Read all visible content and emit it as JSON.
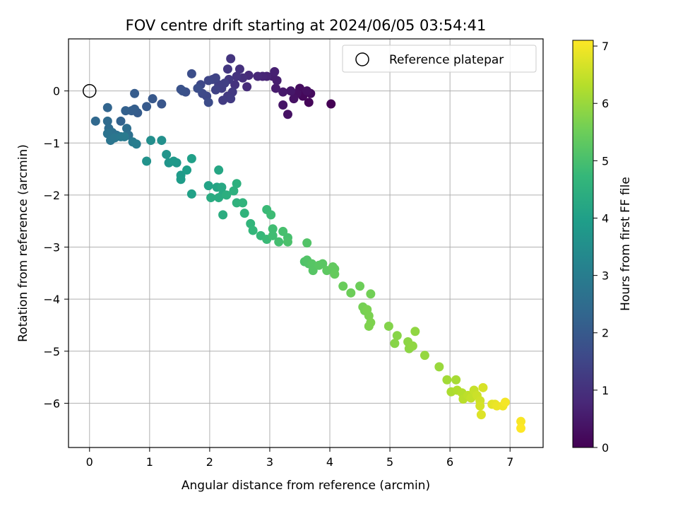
{
  "chart_data": {
    "type": "scatter",
    "title": "FOV centre drift starting at 2024/06/05 03:54:41",
    "xlabel": "Angular distance from reference (arcmin)",
    "ylabel": "Rotation from reference (arcmin)",
    "xlim": [
      -0.35,
      7.55
    ],
    "ylim": [
      -6.85,
      1.0
    ],
    "xticks": [
      0,
      1,
      2,
      3,
      4,
      5,
      6,
      7
    ],
    "yticks": [
      0,
      -1,
      -2,
      -3,
      -4,
      -5,
      -6
    ],
    "grid": true,
    "legend": {
      "placement": "top-right",
      "entries": [
        {
          "label": "Reference platepar",
          "marker": "open-circle"
        }
      ]
    },
    "reference_point": {
      "x": 0,
      "y": 0
    },
    "colorbar": {
      "label": "Hours from first FF file",
      "min": 0,
      "max": 7.1,
      "ticks": [
        0,
        1,
        2,
        3,
        4,
        5,
        6,
        7
      ],
      "colormap": "viridis",
      "colors": [
        "#440154",
        "#482878",
        "#3e4989",
        "#31688e",
        "#26828e",
        "#1f9e89",
        "#35b779",
        "#6ece58",
        "#b5de2b",
        "#fde725"
      ]
    },
    "points": [
      {
        "x": 4.02,
        "y": -0.25,
        "h": 0.0
      },
      {
        "x": 3.65,
        "y": -0.22,
        "h": 0.1
      },
      {
        "x": 3.55,
        "y": -0.1,
        "h": 0.15
      },
      {
        "x": 3.68,
        "y": -0.05,
        "h": 0.2
      },
      {
        "x": 3.5,
        "y": 0.05,
        "h": 0.25
      },
      {
        "x": 3.62,
        "y": 0.0,
        "h": 0.3
      },
      {
        "x": 3.45,
        "y": -0.05,
        "h": 0.3
      },
      {
        "x": 3.4,
        "y": -0.15,
        "h": 0.35
      },
      {
        "x": 3.3,
        "y": -0.45,
        "h": 0.35
      },
      {
        "x": 3.22,
        "y": -0.27,
        "h": 0.4
      },
      {
        "x": 3.35,
        "y": 0.0,
        "h": 0.45
      },
      {
        "x": 3.22,
        "y": -0.02,
        "h": 0.5
      },
      {
        "x": 3.1,
        "y": 0.05,
        "h": 0.55
      },
      {
        "x": 3.12,
        "y": 0.2,
        "h": 0.6
      },
      {
        "x": 3.05,
        "y": 0.28,
        "h": 0.6
      },
      {
        "x": 3.08,
        "y": 0.37,
        "h": 0.65
      },
      {
        "x": 2.95,
        "y": 0.28,
        "h": 0.7
      },
      {
        "x": 2.88,
        "y": 0.28,
        "h": 0.75
      },
      {
        "x": 2.8,
        "y": 0.28,
        "h": 0.8
      },
      {
        "x": 2.65,
        "y": 0.3,
        "h": 0.85
      },
      {
        "x": 2.62,
        "y": 0.08,
        "h": 0.9
      },
      {
        "x": 2.55,
        "y": 0.25,
        "h": 0.95
      },
      {
        "x": 2.5,
        "y": 0.42,
        "h": 1.0
      },
      {
        "x": 2.45,
        "y": 0.28,
        "h": 1.05
      },
      {
        "x": 2.42,
        "y": 0.12,
        "h": 1.05
      },
      {
        "x": 2.35,
        "y": 0.62,
        "h": 1.1
      },
      {
        "x": 2.3,
        "y": 0.42,
        "h": 1.15
      },
      {
        "x": 2.32,
        "y": 0.22,
        "h": 1.15
      },
      {
        "x": 2.38,
        "y": -0.02,
        "h": 1.2
      },
      {
        "x": 2.3,
        "y": -0.1,
        "h": 1.2
      },
      {
        "x": 2.22,
        "y": -0.18,
        "h": 1.25
      },
      {
        "x": 2.35,
        "y": -0.15,
        "h": 1.25
      },
      {
        "x": 2.2,
        "y": 0.05,
        "h": 1.3
      },
      {
        "x": 2.25,
        "y": 0.15,
        "h": 1.35
      },
      {
        "x": 2.15,
        "y": 0.12,
        "h": 1.35
      },
      {
        "x": 2.1,
        "y": 0.02,
        "h": 1.4
      },
      {
        "x": 2.05,
        "y": 0.22,
        "h": 1.45
      },
      {
        "x": 2.1,
        "y": 0.25,
        "h": 1.45
      },
      {
        "x": 1.98,
        "y": 0.2,
        "h": 1.5
      },
      {
        "x": 1.85,
        "y": 0.12,
        "h": 1.55
      },
      {
        "x": 1.95,
        "y": -0.1,
        "h": 1.55
      },
      {
        "x": 1.88,
        "y": -0.05,
        "h": 1.6
      },
      {
        "x": 1.98,
        "y": -0.22,
        "h": 1.65
      },
      {
        "x": 1.8,
        "y": 0.05,
        "h": 1.7
      },
      {
        "x": 1.7,
        "y": 0.33,
        "h": 1.7
      },
      {
        "x": 1.6,
        "y": -0.02,
        "h": 1.75
      },
      {
        "x": 1.55,
        "y": 0.0,
        "h": 1.8
      },
      {
        "x": 1.52,
        "y": 0.03,
        "h": 1.8
      },
      {
        "x": 1.2,
        "y": -0.25,
        "h": 1.9
      },
      {
        "x": 1.05,
        "y": -0.15,
        "h": 1.95
      },
      {
        "x": 0.95,
        "y": -0.3,
        "h": 2.0
      },
      {
        "x": 0.8,
        "y": -0.42,
        "h": 2.05
      },
      {
        "x": 0.75,
        "y": -0.05,
        "h": 2.05
      },
      {
        "x": 0.75,
        "y": -0.35,
        "h": 2.1
      },
      {
        "x": 0.7,
        "y": -0.38,
        "h": 2.15
      },
      {
        "x": 0.6,
        "y": -0.38,
        "h": 2.2
      },
      {
        "x": 0.52,
        "y": -0.58,
        "h": 2.25
      },
      {
        "x": 0.3,
        "y": -0.32,
        "h": 2.3
      },
      {
        "x": 0.1,
        "y": -0.58,
        "h": 2.4
      },
      {
        "x": 0.3,
        "y": -0.58,
        "h": 2.45
      },
      {
        "x": 0.32,
        "y": -0.72,
        "h": 2.5
      },
      {
        "x": 0.62,
        "y": -0.72,
        "h": 2.55
      },
      {
        "x": 0.65,
        "y": -0.85,
        "h": 2.6
      },
      {
        "x": 0.45,
        "y": -0.85,
        "h": 2.6
      },
      {
        "x": 0.38,
        "y": -0.8,
        "h": 2.65
      },
      {
        "x": 0.3,
        "y": -0.82,
        "h": 2.7
      },
      {
        "x": 0.35,
        "y": -0.95,
        "h": 2.75
      },
      {
        "x": 0.42,
        "y": -0.9,
        "h": 2.8
      },
      {
        "x": 0.52,
        "y": -0.88,
        "h": 2.85
      },
      {
        "x": 0.58,
        "y": -0.88,
        "h": 2.9
      },
      {
        "x": 0.72,
        "y": -0.98,
        "h": 2.95
      },
      {
        "x": 0.78,
        "y": -1.02,
        "h": 3.0
      },
      {
        "x": 1.02,
        "y": -0.95,
        "h": 3.5
      },
      {
        "x": 1.2,
        "y": -0.95,
        "h": 3.55
      },
      {
        "x": 0.95,
        "y": -1.35,
        "h": 3.6
      },
      {
        "x": 1.28,
        "y": -1.22,
        "h": 3.65
      },
      {
        "x": 1.32,
        "y": -1.38,
        "h": 3.7
      },
      {
        "x": 1.45,
        "y": -1.38,
        "h": 3.75
      },
      {
        "x": 1.4,
        "y": -1.35,
        "h": 3.8
      },
      {
        "x": 1.52,
        "y": -1.62,
        "h": 3.85
      },
      {
        "x": 1.52,
        "y": -1.7,
        "h": 3.9
      },
      {
        "x": 1.62,
        "y": -1.52,
        "h": 3.95
      },
      {
        "x": 1.7,
        "y": -1.3,
        "h": 4.0
      },
      {
        "x": 1.7,
        "y": -1.98,
        "h": 4.05
      },
      {
        "x": 1.98,
        "y": -1.82,
        "h": 4.1
      },
      {
        "x": 2.12,
        "y": -1.85,
        "h": 4.15
      },
      {
        "x": 2.15,
        "y": -1.52,
        "h": 4.2
      },
      {
        "x": 2.2,
        "y": -1.85,
        "h": 4.25
      },
      {
        "x": 2.22,
        "y": -1.98,
        "h": 4.3
      },
      {
        "x": 2.15,
        "y": -2.05,
        "h": 4.35
      },
      {
        "x": 2.02,
        "y": -2.05,
        "h": 4.35
      },
      {
        "x": 2.22,
        "y": -2.38,
        "h": 4.4
      },
      {
        "x": 2.28,
        "y": -2.0,
        "h": 4.45
      },
      {
        "x": 2.4,
        "y": -1.92,
        "h": 4.5
      },
      {
        "x": 2.45,
        "y": -1.78,
        "h": 4.5
      },
      {
        "x": 2.45,
        "y": -2.15,
        "h": 4.55
      },
      {
        "x": 2.55,
        "y": -2.15,
        "h": 4.6
      },
      {
        "x": 2.58,
        "y": -2.35,
        "h": 4.6
      },
      {
        "x": 2.68,
        "y": -2.55,
        "h": 4.65
      },
      {
        "x": 2.72,
        "y": -2.68,
        "h": 4.7
      },
      {
        "x": 2.85,
        "y": -2.78,
        "h": 4.75
      },
      {
        "x": 2.95,
        "y": -2.85,
        "h": 4.8
      },
      {
        "x": 2.95,
        "y": -2.28,
        "h": 4.8
      },
      {
        "x": 3.02,
        "y": -2.38,
        "h": 4.85
      },
      {
        "x": 3.05,
        "y": -2.65,
        "h": 4.9
      },
      {
        "x": 3.05,
        "y": -2.78,
        "h": 4.9
      },
      {
        "x": 3.15,
        "y": -2.9,
        "h": 4.95
      },
      {
        "x": 3.22,
        "y": -2.7,
        "h": 5.0
      },
      {
        "x": 3.3,
        "y": -2.82,
        "h": 5.0
      },
      {
        "x": 3.3,
        "y": -2.9,
        "h": 5.05
      },
      {
        "x": 3.58,
        "y": -3.28,
        "h": 5.1
      },
      {
        "x": 3.65,
        "y": -3.32,
        "h": 5.15
      },
      {
        "x": 3.62,
        "y": -3.25,
        "h": 5.15
      },
      {
        "x": 3.62,
        "y": -2.92,
        "h": 5.15
      },
      {
        "x": 3.7,
        "y": -3.32,
        "h": 5.2
      },
      {
        "x": 3.72,
        "y": -3.45,
        "h": 5.2
      },
      {
        "x": 3.82,
        "y": -3.35,
        "h": 5.25
      },
      {
        "x": 3.88,
        "y": -3.32,
        "h": 5.25
      },
      {
        "x": 3.95,
        "y": -3.45,
        "h": 5.3
      },
      {
        "x": 4.05,
        "y": -3.38,
        "h": 5.35
      },
      {
        "x": 4.08,
        "y": -3.42,
        "h": 5.35
      },
      {
        "x": 4.08,
        "y": -3.52,
        "h": 5.4
      },
      {
        "x": 4.22,
        "y": -3.75,
        "h": 5.45
      },
      {
        "x": 4.35,
        "y": -3.88,
        "h": 5.5
      },
      {
        "x": 4.5,
        "y": -3.75,
        "h": 5.5
      },
      {
        "x": 4.68,
        "y": -3.9,
        "h": 5.55
      },
      {
        "x": 4.55,
        "y": -4.15,
        "h": 5.6
      },
      {
        "x": 4.58,
        "y": -4.22,
        "h": 5.6
      },
      {
        "x": 4.62,
        "y": -4.2,
        "h": 5.65
      },
      {
        "x": 4.65,
        "y": -4.32,
        "h": 5.65
      },
      {
        "x": 4.68,
        "y": -4.45,
        "h": 5.7
      },
      {
        "x": 4.65,
        "y": -4.52,
        "h": 5.7
      },
      {
        "x": 4.98,
        "y": -4.52,
        "h": 5.75
      },
      {
        "x": 5.12,
        "y": -4.7,
        "h": 5.8
      },
      {
        "x": 5.08,
        "y": -4.85,
        "h": 5.8
      },
      {
        "x": 5.3,
        "y": -4.82,
        "h": 5.85
      },
      {
        "x": 5.32,
        "y": -4.95,
        "h": 5.85
      },
      {
        "x": 5.38,
        "y": -4.9,
        "h": 5.9
      },
      {
        "x": 5.42,
        "y": -4.62,
        "h": 5.9
      },
      {
        "x": 5.58,
        "y": -5.08,
        "h": 5.95
      },
      {
        "x": 5.82,
        "y": -5.3,
        "h": 6.0
      },
      {
        "x": 5.95,
        "y": -5.55,
        "h": 6.1
      },
      {
        "x": 6.1,
        "y": -5.55,
        "h": 6.15
      },
      {
        "x": 6.02,
        "y": -5.78,
        "h": 6.2
      },
      {
        "x": 6.12,
        "y": -5.75,
        "h": 6.25
      },
      {
        "x": 6.2,
        "y": -5.8,
        "h": 6.3
      },
      {
        "x": 6.22,
        "y": -5.92,
        "h": 6.35
      },
      {
        "x": 6.3,
        "y": -5.85,
        "h": 6.4
      },
      {
        "x": 6.35,
        "y": -5.9,
        "h": 6.45
      },
      {
        "x": 6.4,
        "y": -5.75,
        "h": 6.5
      },
      {
        "x": 6.45,
        "y": -5.85,
        "h": 6.55
      },
      {
        "x": 6.5,
        "y": -5.95,
        "h": 6.6
      },
      {
        "x": 6.5,
        "y": -6.05,
        "h": 6.65
      },
      {
        "x": 6.55,
        "y": -5.7,
        "h": 6.7
      },
      {
        "x": 6.52,
        "y": -6.22,
        "h": 6.75
      },
      {
        "x": 6.7,
        "y": -6.02,
        "h": 6.8
      },
      {
        "x": 6.75,
        "y": -6.02,
        "h": 6.85
      },
      {
        "x": 6.78,
        "y": -6.05,
        "h": 6.9
      },
      {
        "x": 6.88,
        "y": -6.05,
        "h": 6.95
      },
      {
        "x": 6.92,
        "y": -5.98,
        "h": 7.0
      },
      {
        "x": 7.18,
        "y": -6.35,
        "h": 7.05
      },
      {
        "x": 7.18,
        "y": -6.48,
        "h": 7.1
      }
    ]
  }
}
